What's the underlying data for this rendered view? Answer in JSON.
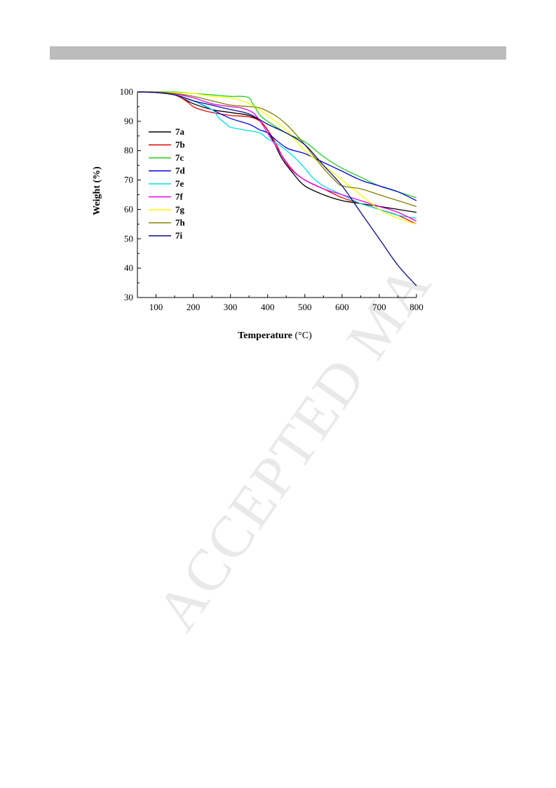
{
  "page": {
    "watermark": "ACCEPTED MA"
  },
  "chart_data": {
    "type": "line",
    "title": "",
    "xlabel": "Temperature",
    "xlabel_unit": "(°C)",
    "ylabel": "Weight (%)",
    "xlim": [
      50,
      800
    ],
    "ylim": [
      30,
      100
    ],
    "xticks": [
      100,
      200,
      300,
      400,
      500,
      600,
      700,
      800
    ],
    "yticks": [
      30,
      40,
      50,
      60,
      70,
      80,
      90,
      100
    ],
    "grid": false,
    "legend_position": "top-left",
    "series": [
      {
        "name": "7a",
        "color": "#000000",
        "x": [
          50,
          100,
          150,
          200,
          250,
          300,
          350,
          380,
          400,
          420,
          440,
          470,
          500,
          550,
          600,
          650,
          700,
          750,
          800
        ],
        "y": [
          100,
          99.8,
          99,
          96,
          94,
          93,
          92,
          90,
          87,
          82,
          77,
          72,
          68,
          65,
          63,
          62,
          61,
          60,
          59
        ]
      },
      {
        "name": "7b",
        "color": "#e00000",
        "x": [
          50,
          100,
          150,
          180,
          200,
          220,
          250,
          300,
          350,
          380,
          400,
          420,
          440,
          470,
          500,
          550,
          600,
          650,
          700,
          750,
          800
        ],
        "y": [
          100,
          99.8,
          99,
          97,
          95,
          94,
          93,
          92,
          91.5,
          90,
          87,
          83,
          78,
          73,
          70,
          67,
          64,
          62,
          60,
          58,
          55
        ]
      },
      {
        "name": "7c",
        "color": "#22cc22",
        "x": [
          50,
          100,
          150,
          200,
          250,
          300,
          330,
          350,
          360,
          370,
          380,
          400,
          450,
          500,
          550,
          600,
          650,
          700,
          750,
          800
        ],
        "y": [
          100,
          100,
          100,
          99.5,
          99,
          98.5,
          98.5,
          98,
          96,
          94,
          92,
          90,
          86,
          83,
          78,
          74,
          71,
          68,
          66,
          64
        ]
      },
      {
        "name": "7d",
        "color": "#0000dd",
        "x": [
          50,
          100,
          150,
          200,
          250,
          300,
          350,
          380,
          400,
          450,
          500,
          550,
          600,
          650,
          700,
          750,
          800
        ],
        "y": [
          100,
          99.8,
          99,
          97,
          94,
          91,
          89,
          87,
          86,
          81,
          79,
          76,
          73,
          70,
          68,
          66,
          63
        ]
      },
      {
        "name": "7e",
        "color": "#00e0e0",
        "x": [
          50,
          100,
          150,
          200,
          250,
          270,
          290,
          300,
          340,
          380,
          400,
          430,
          470,
          500,
          520,
          550,
          600,
          650,
          700,
          750,
          800
        ],
        "y": [
          100,
          99.8,
          99,
          97,
          94,
          91,
          89,
          88,
          87,
          86,
          84,
          82,
          78,
          74,
          71,
          68,
          65,
          62,
          60,
          58,
          57
        ]
      },
      {
        "name": "7f",
        "color": "#ee00ee",
        "x": [
          50,
          100,
          150,
          200,
          250,
          300,
          330,
          360,
          380,
          400,
          430,
          460,
          500,
          550,
          600,
          650,
          700,
          750,
          800
        ],
        "y": [
          100,
          99.8,
          99.3,
          98,
          96,
          95,
          94.5,
          93,
          90,
          86,
          80,
          74,
          70,
          67,
          65,
          63,
          61,
          59,
          56
        ]
      },
      {
        "name": "7g",
        "color": "#ffff00",
        "x": [
          50,
          100,
          150,
          200,
          250,
          300,
          350,
          400,
          450,
          500,
          550,
          600,
          650,
          700,
          750,
          800
        ],
        "y": [
          100,
          100,
          99.8,
          99.5,
          98.5,
          98,
          96,
          92,
          87,
          80,
          75,
          70,
          65,
          60,
          57,
          55
        ]
      },
      {
        "name": "7h",
        "color": "#808000",
        "x": [
          50,
          100,
          150,
          200,
          250,
          300,
          350,
          380,
          420,
          450,
          480,
          500,
          550,
          580,
          600,
          650,
          700,
          750,
          800
        ],
        "y": [
          100,
          100,
          99.5,
          98.5,
          97,
          95.5,
          95,
          94.5,
          92,
          89,
          85,
          82,
          74,
          70,
          68,
          67,
          65,
          63,
          61
        ]
      },
      {
        "name": "7i",
        "color": "#0a0a8c",
        "x": [
          50,
          100,
          150,
          200,
          250,
          300,
          350,
          400,
          450,
          500,
          550,
          600,
          650,
          700,
          750,
          800
        ],
        "y": [
          100,
          99.8,
          99,
          97,
          95.5,
          94,
          92.5,
          89,
          86,
          82,
          75,
          68,
          59,
          50,
          41,
          34
        ]
      }
    ]
  }
}
